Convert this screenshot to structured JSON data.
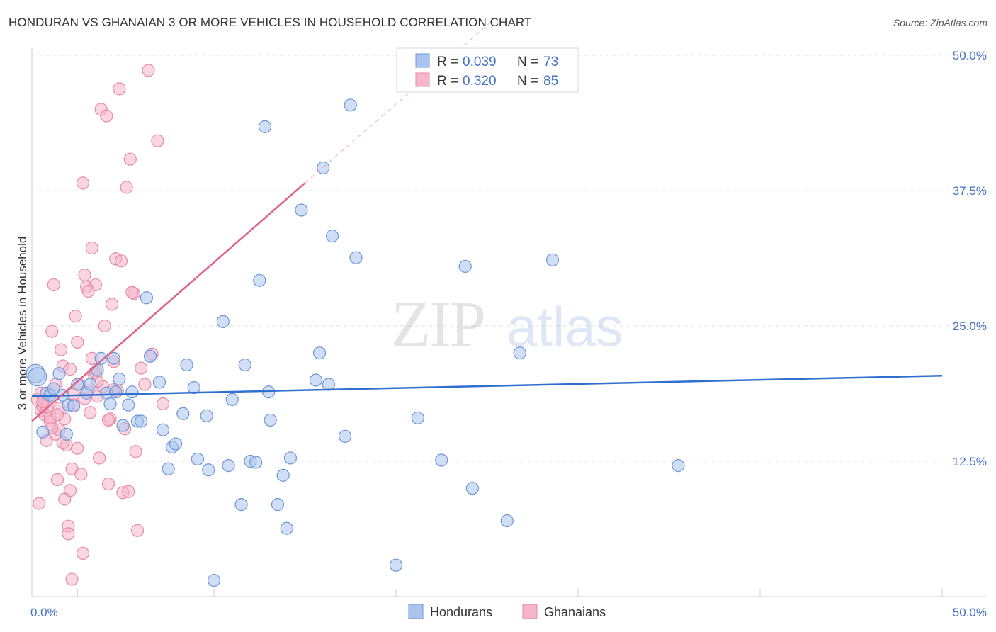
{
  "header": {
    "title": "HONDURAN VS GHANAIAN 3 OR MORE VEHICLES IN HOUSEHOLD CORRELATION CHART",
    "source": "Source: ZipAtlas.com"
  },
  "colors": {
    "blue_fill": "#aac4ee",
    "blue_stroke": "#6b97d6",
    "blue_line": "#2f6fd0",
    "pink_fill": "#f6b5c9",
    "pink_stroke": "#e68aa8",
    "pink_line": "#e0628a",
    "grid": "#e3e3e3",
    "tick_text": "#4472c4"
  },
  "chart_data": {
    "type": "scatter",
    "title": "HONDURAN VS GHANAIAN 3 OR MORE VEHICLES IN HOUSEHOLD CORRELATION CHART",
    "xlabel": "",
    "ylabel": "3 or more Vehicles in Household",
    "xlim": [
      0,
      50
    ],
    "ylim": [
      0,
      50
    ],
    "x_tick_labels": [
      "0.0%",
      "50.0%"
    ],
    "y_ticks": [
      12.5,
      25.0,
      37.5,
      50.0
    ],
    "y_tick_labels": [
      "12.5%",
      "25.0%",
      "37.5%",
      "50.0%"
    ],
    "watermark": {
      "zip": "ZIP",
      "atlas": "atlas"
    },
    "legend": [
      {
        "r_label": "R =",
        "r_value": "0.039",
        "n_label": "N =",
        "n_value": "73"
      },
      {
        "r_label": "R =",
        "r_value": "0.320",
        "n_label": "N =",
        "n_value": "85"
      }
    ],
    "series": [
      {
        "name": "Hondurans",
        "trend": {
          "x0": 0,
          "y0": 18.5,
          "x1": 50,
          "y1": 20.4,
          "extend_to": null
        },
        "points": [
          [
            0.2,
            20.6
          ],
          [
            0.3,
            20.3
          ],
          [
            0.6,
            15.2
          ],
          [
            0.8,
            18.8
          ],
          [
            1.0,
            18.6
          ],
          [
            1.2,
            19.2
          ],
          [
            1.5,
            20.6
          ],
          [
            1.7,
            18.6
          ],
          [
            1.9,
            15.0
          ],
          [
            2.0,
            17.7
          ],
          [
            2.5,
            19.6
          ],
          [
            3.0,
            18.8
          ],
          [
            3.2,
            19.6
          ],
          [
            3.6,
            20.9
          ],
          [
            3.8,
            22.0
          ],
          [
            4.1,
            18.8
          ],
          [
            4.3,
            17.8
          ],
          [
            4.5,
            22.0
          ],
          [
            4.8,
            20.1
          ],
          [
            5.0,
            15.8
          ],
          [
            5.3,
            17.7
          ],
          [
            5.5,
            18.9
          ],
          [
            5.8,
            16.2
          ],
          [
            6.0,
            16.2
          ],
          [
            6.3,
            27.6
          ],
          [
            6.5,
            22.2
          ],
          [
            7.0,
            19.8
          ],
          [
            7.2,
            15.4
          ],
          [
            7.5,
            11.8
          ],
          [
            7.7,
            13.8
          ],
          [
            7.9,
            14.1
          ],
          [
            8.3,
            16.9
          ],
          [
            8.5,
            21.4
          ],
          [
            8.9,
            19.3
          ],
          [
            9.1,
            12.7
          ],
          [
            9.6,
            16.7
          ],
          [
            9.7,
            11.7
          ],
          [
            10.0,
            1.5
          ],
          [
            10.5,
            25.4
          ],
          [
            10.8,
            12.1
          ],
          [
            11.0,
            18.2
          ],
          [
            11.5,
            8.5
          ],
          [
            11.7,
            21.4
          ],
          [
            12.0,
            12.5
          ],
          [
            12.3,
            12.4
          ],
          [
            12.5,
            29.2
          ],
          [
            12.8,
            43.4
          ],
          [
            13.0,
            18.9
          ],
          [
            13.1,
            16.3
          ],
          [
            13.5,
            8.5
          ],
          [
            13.8,
            11.2
          ],
          [
            14.0,
            6.3
          ],
          [
            14.2,
            12.8
          ],
          [
            14.8,
            35.7
          ],
          [
            15.6,
            20.0
          ],
          [
            15.8,
            22.5
          ],
          [
            16.0,
            39.6
          ],
          [
            16.3,
            19.6
          ],
          [
            16.5,
            33.3
          ],
          [
            17.2,
            14.8
          ],
          [
            17.5,
            45.4
          ],
          [
            17.8,
            31.3
          ],
          [
            20.0,
            2.9
          ],
          [
            21.2,
            16.5
          ],
          [
            22.5,
            12.6
          ],
          [
            23.8,
            30.5
          ],
          [
            24.2,
            10.0
          ],
          [
            26.1,
            7.0
          ],
          [
            26.8,
            22.5
          ],
          [
            28.6,
            31.1
          ],
          [
            35.5,
            12.1
          ],
          [
            4.6,
            18.9
          ],
          [
            2.3,
            17.6
          ]
        ]
      },
      {
        "name": "Ghanaians",
        "trend": {
          "x0": 0,
          "y0": 16.2,
          "x1": 15,
          "y1": 38.2,
          "extend_to": {
            "x": 25.5,
            "y": 53.5
          }
        },
        "points": [
          [
            0.3,
            18.2
          ],
          [
            0.4,
            8.6
          ],
          [
            0.5,
            17.2
          ],
          [
            0.6,
            17.6
          ],
          [
            0.7,
            16.8
          ],
          [
            0.8,
            14.4
          ],
          [
            0.9,
            18.7
          ],
          [
            1.0,
            16.2
          ],
          [
            1.1,
            24.5
          ],
          [
            1.2,
            28.8
          ],
          [
            1.3,
            15.0
          ],
          [
            1.4,
            10.8
          ],
          [
            1.5,
            17.4
          ],
          [
            1.6,
            22.8
          ],
          [
            1.7,
            21.3
          ],
          [
            1.8,
            16.4
          ],
          [
            1.9,
            14.0
          ],
          [
            2.0,
            6.5
          ],
          [
            2.1,
            9.8
          ],
          [
            2.2,
            11.8
          ],
          [
            2.3,
            18.7
          ],
          [
            2.4,
            25.9
          ],
          [
            2.5,
            23.5
          ],
          [
            2.6,
            19.6
          ],
          [
            2.7,
            11.3
          ],
          [
            2.8,
            38.2
          ],
          [
            2.9,
            29.7
          ],
          [
            3.0,
            28.6
          ],
          [
            3.1,
            19.0
          ],
          [
            3.2,
            17.0
          ],
          [
            3.3,
            32.2
          ],
          [
            3.4,
            20.6
          ],
          [
            3.5,
            28.8
          ],
          [
            3.6,
            18.5
          ],
          [
            3.7,
            12.8
          ],
          [
            3.8,
            45.0
          ],
          [
            3.9,
            19.4
          ],
          [
            4.0,
            25.0
          ],
          [
            4.1,
            44.4
          ],
          [
            4.2,
            10.4
          ],
          [
            4.3,
            16.4
          ],
          [
            4.4,
            27.0
          ],
          [
            4.5,
            21.7
          ],
          [
            4.6,
            31.2
          ],
          [
            4.7,
            19.0
          ],
          [
            4.8,
            46.9
          ],
          [
            5.0,
            9.6
          ],
          [
            5.2,
            37.8
          ],
          [
            5.3,
            9.7
          ],
          [
            5.4,
            40.4
          ],
          [
            5.6,
            28.0
          ],
          [
            5.7,
            13.4
          ],
          [
            5.8,
            6.1
          ],
          [
            6.0,
            21.1
          ],
          [
            6.2,
            19.6
          ],
          [
            6.4,
            48.6
          ],
          [
            6.6,
            22.4
          ],
          [
            6.9,
            42.1
          ],
          [
            7.2,
            17.8
          ],
          [
            1.5,
            15.4
          ],
          [
            2.5,
            13.7
          ],
          [
            0.5,
            18.8
          ],
          [
            0.8,
            17.5
          ],
          [
            1.1,
            15.6
          ],
          [
            1.3,
            19.6
          ],
          [
            1.7,
            14.2
          ],
          [
            2.1,
            21.0
          ],
          [
            2.3,
            17.7
          ],
          [
            3.5,
            20.7
          ],
          [
            4.2,
            16.3
          ],
          [
            2.8,
            4.0
          ],
          [
            2.2,
            1.6
          ],
          [
            3.1,
            28.2
          ],
          [
            4.5,
            19.1
          ],
          [
            5.1,
            15.5
          ],
          [
            1.0,
            16.5
          ],
          [
            0.6,
            18.0
          ],
          [
            2.0,
            5.8
          ],
          [
            3.3,
            22.0
          ],
          [
            1.8,
            9.0
          ],
          [
            3.6,
            19.9
          ],
          [
            2.9,
            18.3
          ],
          [
            5.5,
            28.1
          ],
          [
            4.9,
            31.0
          ],
          [
            1.4,
            16.8
          ]
        ]
      }
    ]
  }
}
